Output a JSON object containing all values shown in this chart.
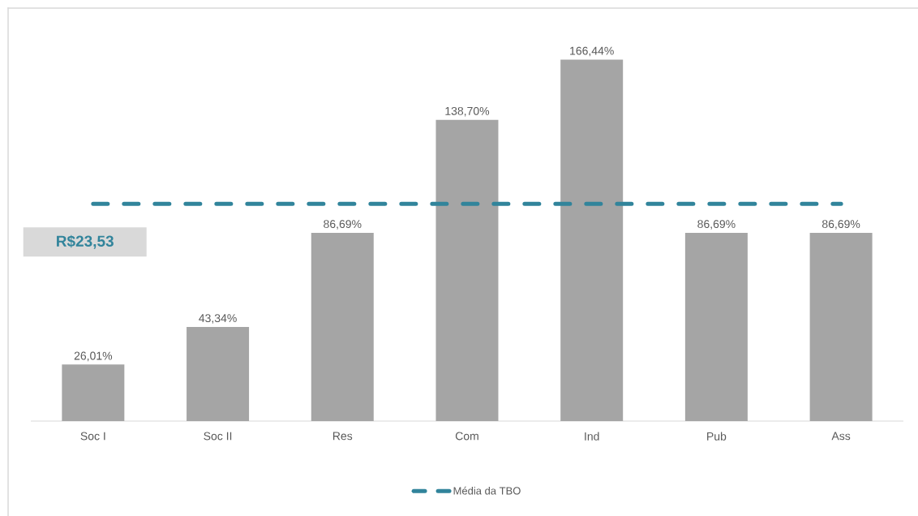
{
  "chart_data": {
    "type": "bar",
    "categories": [
      "Soc I",
      "Soc II",
      "Res",
      "Com",
      "Ind",
      "Pub",
      "Ass"
    ],
    "series": [
      {
        "color": "#a5a5a5",
        "values": [
          26.01,
          43.34,
          86.69,
          138.7,
          166.44,
          86.69,
          86.69
        ],
        "value_labels": [
          "26,01%",
          "43,34%",
          "86,69%",
          "138,70%",
          "166,44%",
          "86,69%",
          "86,69%"
        ]
      },
      {
        "type": "line",
        "name": "Média da TBO",
        "color": "#31849b",
        "line_style": "dashed",
        "marker": "none",
        "values": [
          100,
          100,
          100,
          100,
          100,
          100,
          100
        ]
      }
    ],
    "annotations": [
      "R$23,53"
    ],
    "legend": "bottom"
  }
}
